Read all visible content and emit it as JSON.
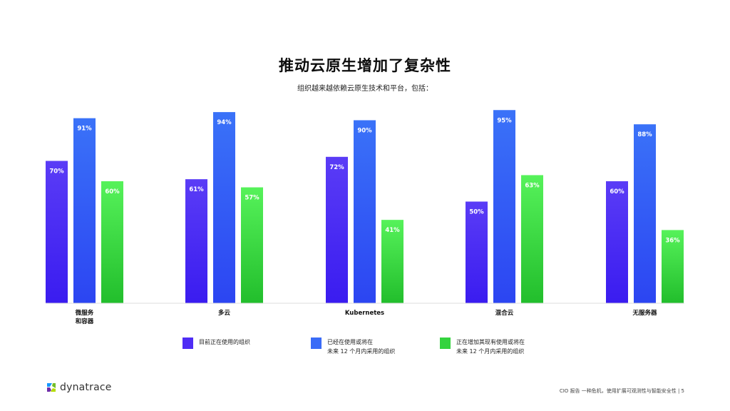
{
  "header": {
    "title": "推动云原生增加了复杂性",
    "subtitle": "组织越来越依赖云原生技术和平台，包括："
  },
  "colors": {
    "purple": "#4f2df5",
    "blue": "#3a6cf7",
    "green": "#34d33e"
  },
  "chart_data": {
    "type": "bar",
    "categories": [
      "微服务\n和容器",
      "多云",
      "Kubernetes",
      "混合云",
      "无服务器"
    ],
    "series": [
      {
        "name": "目前正在使用的组织",
        "values": [
          70,
          61,
          72,
          50,
          60
        ]
      },
      {
        "name": "已经在使用或将在\n未来 12 个月内采用的组织",
        "values": [
          91,
          94,
          90,
          95,
          88
        ]
      },
      {
        "name": "正在增加其现有使用或将在\n未来 12 个月内采用的组织",
        "values": [
          60,
          57,
          41,
          63,
          36
        ]
      }
    ],
    "value_suffix": "%",
    "ylim": [
      0,
      100
    ],
    "grid": false,
    "legend_position": "bottom"
  },
  "brand": {
    "logo_text": "dynatrace",
    "logo_icon": "dynatrace-logo-icon"
  },
  "footer": {
    "text": "CIO 报告 一种危机，使用扩展可观测性与智能安全性 | 5"
  }
}
